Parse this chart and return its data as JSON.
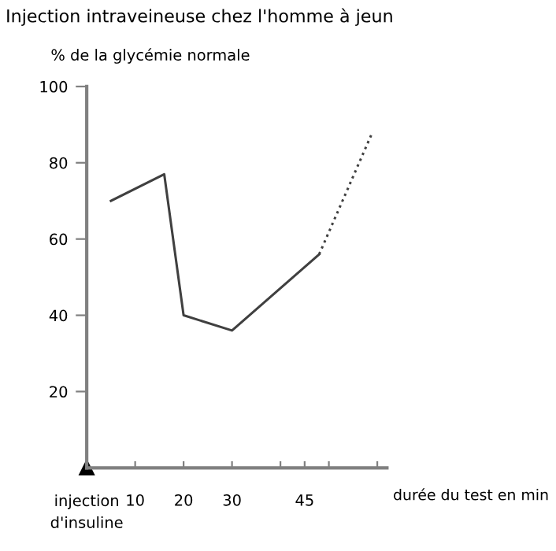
{
  "chart_data": {
    "type": "line",
    "title": "Injection intraveineuse chez l'homme à jeun",
    "ylabel": "% de la glycémie normale",
    "xlabel": "durée du test en min",
    "series": [
      {
        "color": "#404040",
        "x": [
          5,
          16,
          20,
          30,
          48
        ],
        "values": [
          70,
          77,
          40,
          36,
          56
        ],
        "line_style": "solid"
      },
      {
        "color": "#404040",
        "x": [
          48,
          59
        ],
        "values": [
          56,
          88
        ],
        "line_style": "dotted"
      }
    ],
    "xlim": [
      0,
      62
    ],
    "xticks": [
      10,
      20,
      30,
      {
        "value": 40,
        "label": null
      },
      45,
      {
        "value": 50,
        "label": null
      },
      {
        "value": 60,
        "label": null
      }
    ],
    "ylim": [
      0,
      100
    ],
    "yticks": [
      20,
      40,
      60,
      80,
      100
    ],
    "annotations": [
      "injection\nd'insuline"
    ],
    "grid": false,
    "legend": false
  }
}
